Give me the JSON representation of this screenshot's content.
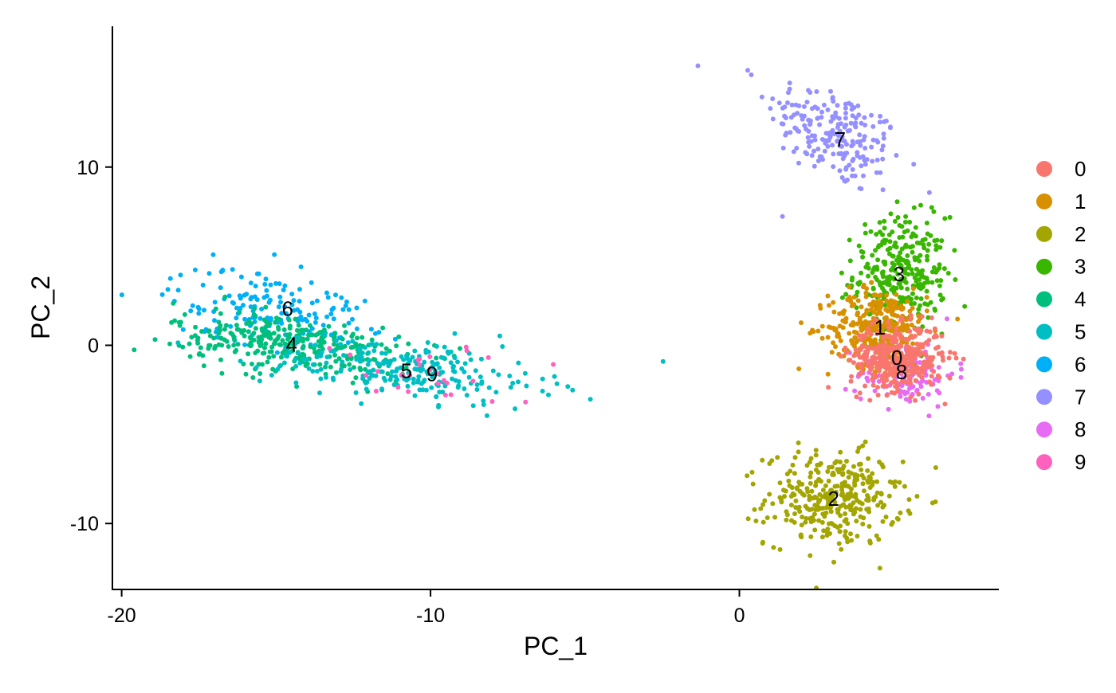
{
  "chart_data": {
    "type": "scatter",
    "title": "",
    "xlabel": "PC_1",
    "ylabel": "PC_2",
    "xlim": [
      -20.3,
      8.4
    ],
    "ylim": [
      -13.7,
      17.9
    ],
    "x_ticks": [
      -20,
      -10,
      0
    ],
    "y_ticks": [
      -10,
      0,
      10
    ],
    "x_tick_labels": [
      "-20",
      "-10",
      "0"
    ],
    "y_tick_labels": [
      "-10",
      "0",
      "10"
    ],
    "grid": false,
    "legend_placement": "right",
    "legend_entries": [
      "0",
      "1",
      "2",
      "3",
      "4",
      "5",
      "6",
      "7",
      "8",
      "9"
    ],
    "colors": [
      "#F8766D",
      "#D89000",
      "#A3A500",
      "#39B600",
      "#00BF7D",
      "#00BFC4",
      "#00B0F6",
      "#9590FF",
      "#E76BF3",
      "#FF62BC"
    ],
    "clusters": [
      {
        "id": "0",
        "center": [
          5.1,
          -0.7
        ],
        "sd": [
          0.75,
          0.9
        ],
        "n": 380,
        "corr": 0
      },
      {
        "id": "1",
        "center": [
          4.5,
          1.0
        ],
        "sd": [
          0.8,
          1.1
        ],
        "n": 320,
        "corr": 0
      },
      {
        "id": "2",
        "center": [
          3.05,
          -8.6
        ],
        "sd": [
          1.1,
          1.3
        ],
        "n": 330,
        "corr": 0
      },
      {
        "id": "3",
        "center": [
          5.2,
          4.0
        ],
        "sd": [
          0.75,
          1.6
        ],
        "n": 300,
        "corr": 0
      },
      {
        "id": "4",
        "center": [
          -14.5,
          0.05
        ],
        "sd": [
          1.9,
          0.9
        ],
        "n": 330,
        "corr": -0.45
      },
      {
        "id": "5",
        "center": [
          -10.8,
          -1.4
        ],
        "sd": [
          2.3,
          0.9
        ],
        "n": 240,
        "corr": -0.4
      },
      {
        "id": "6",
        "center": [
          -15.2,
          2.1
        ],
        "sd": [
          1.6,
          1.1
        ],
        "n": 170,
        "corr": -0.3
      },
      {
        "id": "7",
        "center": [
          3.1,
          11.8
        ],
        "sd": [
          1.1,
          1.6
        ],
        "n": 210,
        "corr": -0.5
      },
      {
        "id": "8",
        "center": [
          5.4,
          -1.6
        ],
        "sd": [
          0.8,
          0.9
        ],
        "n": 120,
        "corr": 0
      },
      {
        "id": "9",
        "center": [
          -9.8,
          -1.6
        ],
        "sd": [
          1.6,
          0.9
        ],
        "n": 28,
        "corr": 0
      }
    ],
    "cluster_labels": [
      {
        "text": "0",
        "x": 5.1,
        "y": -0.7
      },
      {
        "text": "1",
        "x": 4.55,
        "y": 1.0
      },
      {
        "text": "2",
        "x": 3.05,
        "y": -8.6
      },
      {
        "text": "3",
        "x": 5.17,
        "y": 4.0
      },
      {
        "text": "4",
        "x": -14.5,
        "y": 0.05
      },
      {
        "text": "5",
        "x": -10.78,
        "y": -1.43
      },
      {
        "text": "6",
        "x": -14.63,
        "y": 2.05
      },
      {
        "text": "7",
        "x": 3.26,
        "y": 11.56
      },
      {
        "text": "8",
        "x": 5.25,
        "y": -1.5
      },
      {
        "text": "9",
        "x": -9.95,
        "y": -1.6
      }
    ]
  }
}
